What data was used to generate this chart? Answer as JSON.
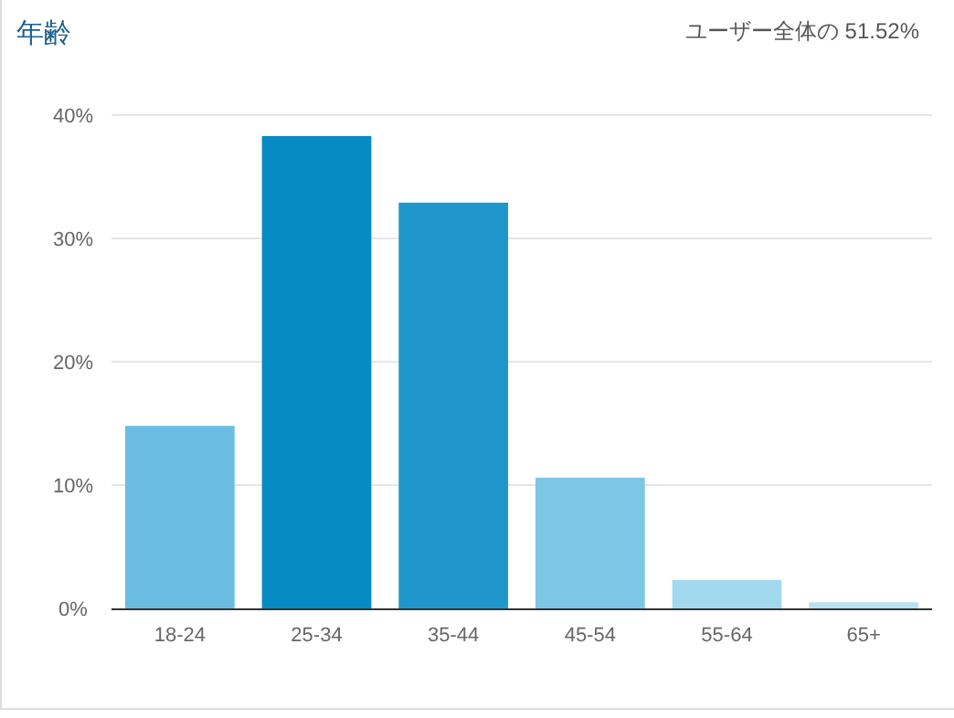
{
  "chart_data": {
    "type": "bar",
    "title": "年齢",
    "subtitle": "ユーザー全体の 51.52%",
    "categories": [
      "18-24",
      "25-34",
      "35-44",
      "45-54",
      "55-64",
      "65+"
    ],
    "values": [
      14.8,
      38.3,
      32.9,
      10.6,
      2.3,
      0.5
    ],
    "colors": [
      "#6abde0",
      "#078bc5",
      "#1f97cc",
      "#7ec6e5",
      "#a3d9ef",
      "#b9e1f1"
    ],
    "ylim": [
      0,
      40
    ],
    "yticks": [
      {
        "value": 0,
        "label": "0%"
      },
      {
        "value": 10,
        "label": "10%"
      },
      {
        "value": 20,
        "label": "20%"
      },
      {
        "value": 30,
        "label": "30%"
      },
      {
        "value": 40,
        "label": "40%"
      }
    ],
    "grid": "y"
  }
}
